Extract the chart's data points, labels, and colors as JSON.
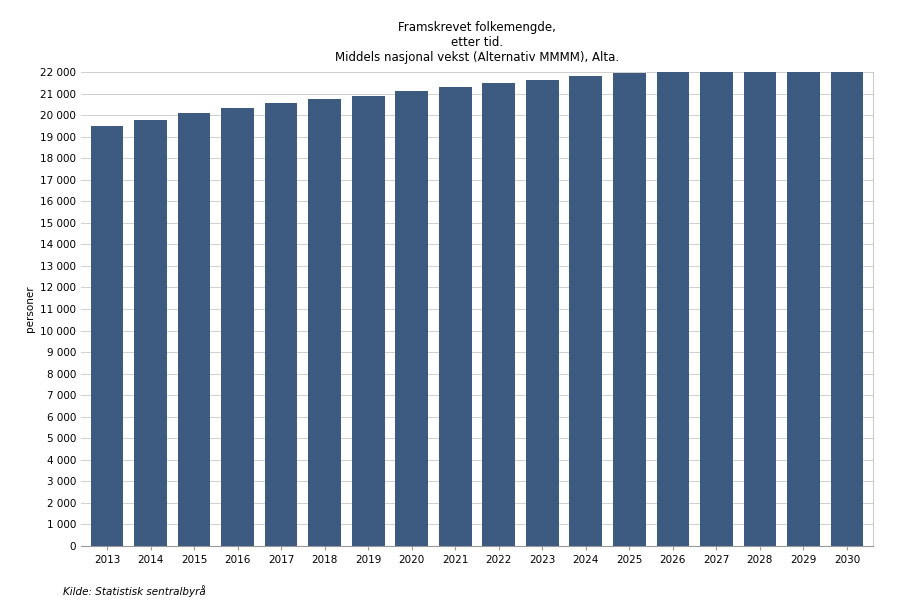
{
  "title": "Framskrevet folkemengde,\netter tid.\nMiddels nasjonal vekst (Alternativ MMMM), Alta.",
  "ylabel": "personer",
  "source": "Kilde: Statistisk sentralbyrå",
  "bar_color": "#3d5a80",
  "years": [
    2013,
    2014,
    2015,
    2016,
    2017,
    2018,
    2019,
    2020,
    2021,
    2022,
    2023,
    2024,
    2025,
    2026,
    2027,
    2028,
    2029,
    2030
  ],
  "values": [
    19500,
    19750,
    20100,
    20350,
    20550,
    20750,
    20900,
    21100,
    21300,
    21500,
    21650,
    21800,
    21950,
    22100,
    22200,
    22350,
    22450,
    22600
  ],
  "ylim": [
    0,
    22000
  ],
  "yticks": [
    0,
    1000,
    2000,
    3000,
    4000,
    5000,
    6000,
    7000,
    8000,
    9000,
    10000,
    11000,
    12000,
    13000,
    14000,
    15000,
    16000,
    17000,
    18000,
    19000,
    20000,
    21000,
    22000
  ],
  "background_color": "#ffffff",
  "plot_bg_color": "#ffffff",
  "grid_color": "#d0d0d0",
  "title_fontsize": 8.5,
  "axis_fontsize": 7.5,
  "ylabel_fontsize": 7.5,
  "source_fontsize": 7.5
}
